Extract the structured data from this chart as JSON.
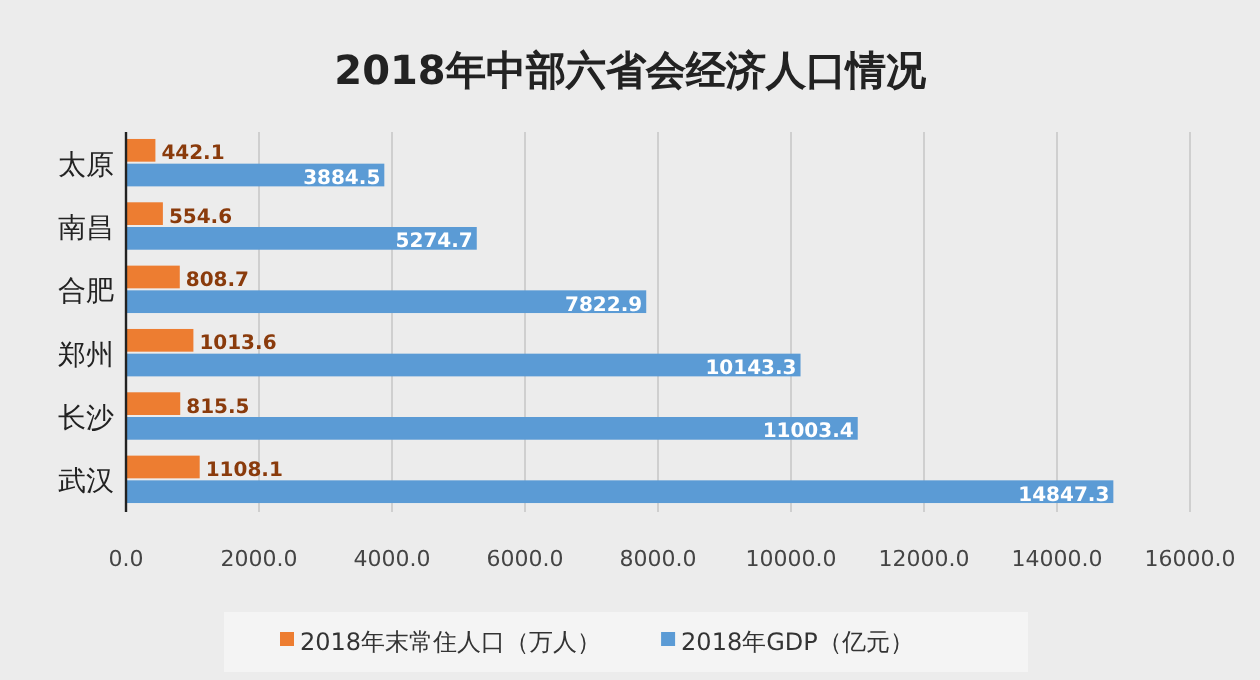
{
  "chart_data": {
    "type": "bar",
    "orientation": "horizontal",
    "title": "2018年中部六省会经济人口情况",
    "categories": [
      "太原",
      "南昌",
      "合肥",
      "郑州",
      "长沙",
      "武汉"
    ],
    "series": [
      {
        "name": "2018年末常住人口（万人）",
        "color": "#ed7d31",
        "values": [
          442.1,
          554.6,
          808.7,
          1013.6,
          815.5,
          1108.1
        ]
      },
      {
        "name": "2018年GDP（亿元）",
        "color": "#5b9bd5",
        "values": [
          3884.5,
          5274.7,
          7822.9,
          10143.3,
          11003.4,
          14847.3
        ]
      }
    ],
    "xlim": [
      0,
      16000
    ],
    "xticks": [
      {
        "value": 0,
        "label": "0.0"
      },
      {
        "value": 2000,
        "label": "2000.0"
      },
      {
        "value": 4000,
        "label": "4000.0"
      },
      {
        "value": 6000,
        "label": "6000.0"
      },
      {
        "value": 8000,
        "label": "8000.0"
      },
      {
        "value": 10000,
        "label": "10000.0"
      },
      {
        "value": 12000,
        "label": "12000.0"
      },
      {
        "value": 14000,
        "label": "14000.0"
      },
      {
        "value": 16000,
        "label": "16000.0"
      }
    ],
    "grid": "x",
    "legend": "bottom",
    "data_labels": true
  }
}
